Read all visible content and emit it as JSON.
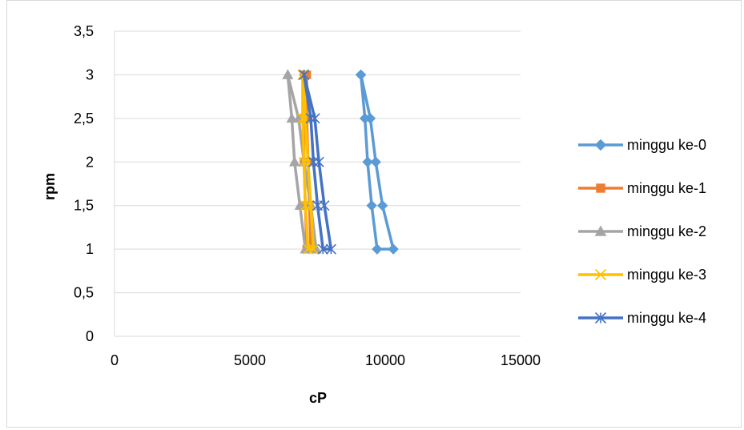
{
  "chart_data": {
    "type": "line",
    "title": "",
    "xlabel": "cP",
    "ylabel": "rpm",
    "xlim": [
      0,
      15000
    ],
    "ylim": [
      0,
      3.5
    ],
    "x_ticks": [
      "0",
      "5000",
      "10000",
      "15000"
    ],
    "y_ticks": [
      "0",
      "0,5",
      "1",
      "1,5",
      "2",
      "2,5",
      "3",
      "3,5"
    ],
    "grid": "horizontal",
    "legend_position": "right",
    "series": [
      {
        "name": "minggu ke-0",
        "color": "#5b9bd5",
        "marker": "diamond",
        "points": [
          [
            9100,
            3
          ],
          [
            9250,
            2.5
          ],
          [
            9350,
            2
          ],
          [
            9500,
            1.5
          ],
          [
            9700,
            1
          ],
          [
            10300,
            1
          ],
          [
            9900,
            1.5
          ],
          [
            9650,
            2
          ],
          [
            9450,
            2.5
          ],
          [
            9100,
            3
          ]
        ]
      },
      {
        "name": "minggu ke-1",
        "color": "#ed7d31",
        "marker": "square",
        "points": [
          [
            7000,
            3
          ],
          [
            7000,
            2.5
          ],
          [
            7000,
            2
          ],
          [
            7050,
            1.5
          ],
          [
            7100,
            1
          ],
          [
            7250,
            1
          ],
          [
            7200,
            1.5
          ],
          [
            7150,
            2
          ],
          [
            7100,
            2.5
          ],
          [
            7100,
            3
          ]
        ]
      },
      {
        "name": "minggu ke-2",
        "color": "#a5a5a5",
        "marker": "triangle",
        "points": [
          [
            6400,
            3
          ],
          [
            6550,
            2.5
          ],
          [
            6650,
            2
          ],
          [
            6850,
            1.5
          ],
          [
            7050,
            1
          ],
          [
            7450,
            1
          ],
          [
            7250,
            1.5
          ],
          [
            7000,
            2
          ],
          [
            6800,
            2.5
          ],
          [
            6400,
            3
          ]
        ]
      },
      {
        "name": "minggu ke-3",
        "color": "#ffc000",
        "marker": "x",
        "points": [
          [
            6950,
            3
          ],
          [
            6950,
            2.5
          ],
          [
            7000,
            2
          ],
          [
            7050,
            1.5
          ],
          [
            7150,
            1
          ],
          [
            7350,
            1
          ],
          [
            7250,
            1.5
          ],
          [
            7150,
            2
          ],
          [
            7050,
            2.5
          ],
          [
            7000,
            3
          ]
        ]
      },
      {
        "name": "minggu ke-4",
        "color": "#4472c4",
        "marker": "asterisk",
        "points": [
          [
            7000,
            3
          ],
          [
            7250,
            2.5
          ],
          [
            7350,
            2
          ],
          [
            7500,
            1.5
          ],
          [
            7700,
            1
          ],
          [
            8000,
            1
          ],
          [
            7750,
            1.5
          ],
          [
            7550,
            2
          ],
          [
            7400,
            2.5
          ],
          [
            7000,
            3
          ]
        ]
      }
    ]
  }
}
